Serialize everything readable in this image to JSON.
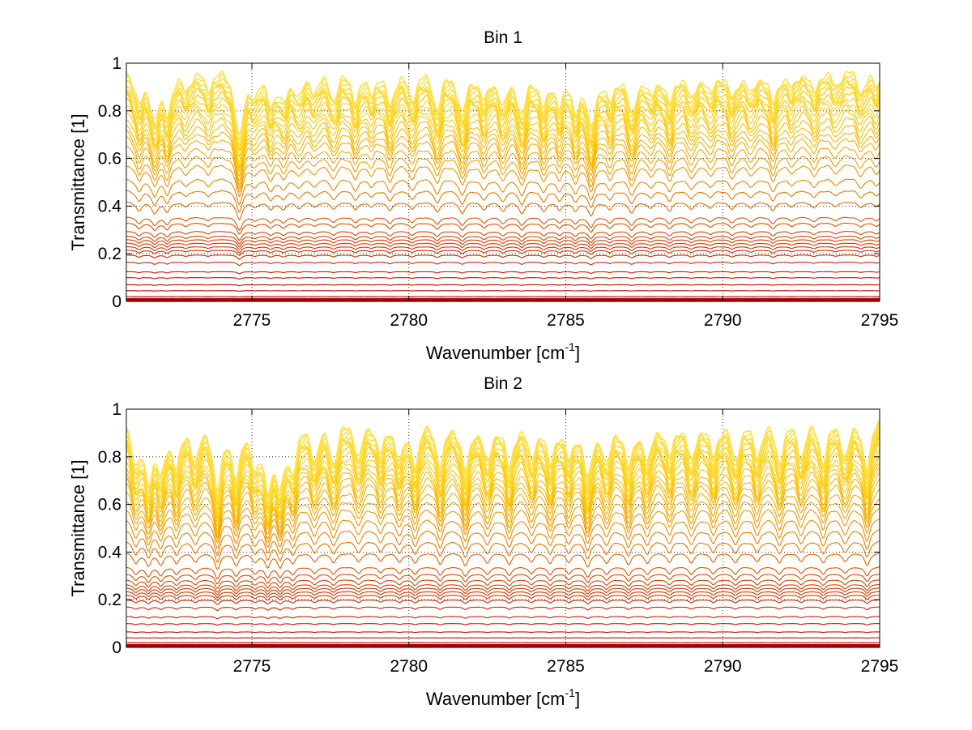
{
  "chart_data": [
    {
      "type": "line",
      "title": "Bin 1",
      "xlabel_base": "Wavenumber [cm",
      "xlabel_sup": "-1",
      "xlabel_close": "]",
      "ylabel": "Transmittance [1]",
      "xlim": [
        2771,
        2795
      ],
      "ylim": [
        0,
        1
      ],
      "xticks": [
        2775,
        2780,
        2785,
        2790,
        2795
      ],
      "xtick_labels": [
        "2775",
        "2780",
        "2785",
        "2790",
        "2795"
      ],
      "yticks": [
        0,
        0.2,
        0.4,
        0.6,
        0.8,
        1
      ],
      "ytick_labels": [
        "0",
        "0.2",
        "0.4",
        "0.6",
        "0.8",
        "1"
      ],
      "grid": true,
      "grid_style": "dotted",
      "colormap": [
        "#b30000",
        "#cc2200",
        "#e05000",
        "#ee8000",
        "#f5a800",
        "#ffc800",
        "#ffe14a"
      ],
      "line_levels": [
        0.003,
        0.006,
        0.01,
        0.02,
        0.045,
        0.07,
        0.1,
        0.125,
        0.165,
        0.195,
        0.215,
        0.23,
        0.245,
        0.26,
        0.275,
        0.295,
        0.33,
        0.355,
        0.42,
        0.47,
        0.52,
        0.58,
        0.62,
        0.66,
        0.7,
        0.73,
        0.76,
        0.79,
        0.82,
        0.845,
        0.87,
        0.89,
        0.91,
        0.93,
        0.945,
        0.96,
        0.97,
        0.98,
        0.99,
        1.0
      ],
      "absorption_lines": [
        {
          "x": 2771.4,
          "depth": 0.35
        },
        {
          "x": 2771.9,
          "depth": 0.45
        },
        {
          "x": 2772.3,
          "depth": 0.4
        },
        {
          "x": 2772.9,
          "depth": 0.2
        },
        {
          "x": 2773.6,
          "depth": 0.2
        },
        {
          "x": 2774.6,
          "depth": 0.7
        },
        {
          "x": 2775.1,
          "depth": 0.2
        },
        {
          "x": 2775.6,
          "depth": 0.3
        },
        {
          "x": 2776.0,
          "depth": 0.3
        },
        {
          "x": 2776.5,
          "depth": 0.25
        },
        {
          "x": 2777.0,
          "depth": 0.2
        },
        {
          "x": 2777.6,
          "depth": 0.3
        },
        {
          "x": 2778.3,
          "depth": 0.3
        },
        {
          "x": 2778.8,
          "depth": 0.2
        },
        {
          "x": 2779.4,
          "depth": 0.35
        },
        {
          "x": 2780.1,
          "depth": 0.3
        },
        {
          "x": 2780.9,
          "depth": 0.4
        },
        {
          "x": 2781.7,
          "depth": 0.45
        },
        {
          "x": 2782.4,
          "depth": 0.3
        },
        {
          "x": 2783.0,
          "depth": 0.35
        },
        {
          "x": 2783.6,
          "depth": 0.45
        },
        {
          "x": 2784.3,
          "depth": 0.35
        },
        {
          "x": 2784.8,
          "depth": 0.3
        },
        {
          "x": 2785.3,
          "depth": 0.35
        },
        {
          "x": 2785.8,
          "depth": 0.55
        },
        {
          "x": 2786.4,
          "depth": 0.3
        },
        {
          "x": 2787.1,
          "depth": 0.45
        },
        {
          "x": 2787.7,
          "depth": 0.25
        },
        {
          "x": 2788.3,
          "depth": 0.35
        },
        {
          "x": 2789.0,
          "depth": 0.3
        },
        {
          "x": 2789.6,
          "depth": 0.25
        },
        {
          "x": 2790.3,
          "depth": 0.3
        },
        {
          "x": 2790.9,
          "depth": 0.25
        },
        {
          "x": 2791.6,
          "depth": 0.35
        },
        {
          "x": 2792.2,
          "depth": 0.2
        },
        {
          "x": 2792.9,
          "depth": 0.25
        },
        {
          "x": 2793.6,
          "depth": 0.2
        },
        {
          "x": 2794.4,
          "depth": 0.25
        },
        {
          "x": 2794.9,
          "depth": 0.2
        }
      ]
    },
    {
      "type": "line",
      "title": "Bin 2",
      "xlabel_base": "Wavenumber [cm",
      "xlabel_sup": "-1",
      "xlabel_close": "]",
      "ylabel": "Transmittance [1]",
      "xlim": [
        2771,
        2795
      ],
      "ylim": [
        0,
        1
      ],
      "xticks": [
        2775,
        2780,
        2785,
        2790,
        2795
      ],
      "xtick_labels": [
        "2775",
        "2780",
        "2785",
        "2790",
        "2795"
      ],
      "yticks": [
        0,
        0.2,
        0.4,
        0.6,
        0.8,
        1
      ],
      "ytick_labels": [
        "0",
        "0.2",
        "0.4",
        "0.6",
        "0.8",
        "1"
      ],
      "grid": true,
      "grid_style": "dotted",
      "colormap": [
        "#b30000",
        "#cc2200",
        "#e05000",
        "#ee8000",
        "#f5a800",
        "#ffc800",
        "#ffe14a"
      ],
      "line_levels": [
        0.003,
        0.006,
        0.01,
        0.02,
        0.04,
        0.065,
        0.1,
        0.13,
        0.17,
        0.2,
        0.22,
        0.235,
        0.25,
        0.265,
        0.285,
        0.31,
        0.34,
        0.4,
        0.45,
        0.5,
        0.55,
        0.6,
        0.64,
        0.68,
        0.72,
        0.75,
        0.78,
        0.81,
        0.84,
        0.86,
        0.885,
        0.905,
        0.925,
        0.94,
        0.955,
        0.965,
        0.975,
        0.985,
        0.993,
        1.0
      ],
      "absorption_lines": [
        {
          "x": 2771.3,
          "depth": 0.45
        },
        {
          "x": 2771.7,
          "depth": 0.55
        },
        {
          "x": 2772.1,
          "depth": 0.5
        },
        {
          "x": 2772.6,
          "depth": 0.45
        },
        {
          "x": 2773.2,
          "depth": 0.4
        },
        {
          "x": 2773.9,
          "depth": 0.7
        },
        {
          "x": 2774.5,
          "depth": 0.55
        },
        {
          "x": 2775.1,
          "depth": 0.4
        },
        {
          "x": 2775.5,
          "depth": 0.6
        },
        {
          "x": 2775.9,
          "depth": 0.6
        },
        {
          "x": 2776.3,
          "depth": 0.45
        },
        {
          "x": 2777.0,
          "depth": 0.4
        },
        {
          "x": 2777.6,
          "depth": 0.45
        },
        {
          "x": 2778.4,
          "depth": 0.4
        },
        {
          "x": 2779.1,
          "depth": 0.35
        },
        {
          "x": 2779.7,
          "depth": 0.4
        },
        {
          "x": 2780.2,
          "depth": 0.45
        },
        {
          "x": 2781.0,
          "depth": 0.5
        },
        {
          "x": 2781.8,
          "depth": 0.55
        },
        {
          "x": 2782.5,
          "depth": 0.45
        },
        {
          "x": 2783.2,
          "depth": 0.5
        },
        {
          "x": 2783.9,
          "depth": 0.4
        },
        {
          "x": 2784.5,
          "depth": 0.45
        },
        {
          "x": 2785.1,
          "depth": 0.4
        },
        {
          "x": 2785.7,
          "depth": 0.6
        },
        {
          "x": 2786.3,
          "depth": 0.45
        },
        {
          "x": 2787.0,
          "depth": 0.5
        },
        {
          "x": 2787.6,
          "depth": 0.45
        },
        {
          "x": 2788.3,
          "depth": 0.4
        },
        {
          "x": 2789.0,
          "depth": 0.45
        },
        {
          "x": 2789.7,
          "depth": 0.4
        },
        {
          "x": 2790.4,
          "depth": 0.45
        },
        {
          "x": 2791.1,
          "depth": 0.4
        },
        {
          "x": 2791.8,
          "depth": 0.45
        },
        {
          "x": 2792.5,
          "depth": 0.4
        },
        {
          "x": 2793.2,
          "depth": 0.45
        },
        {
          "x": 2793.9,
          "depth": 0.4
        },
        {
          "x": 2794.6,
          "depth": 0.55
        }
      ]
    }
  ]
}
